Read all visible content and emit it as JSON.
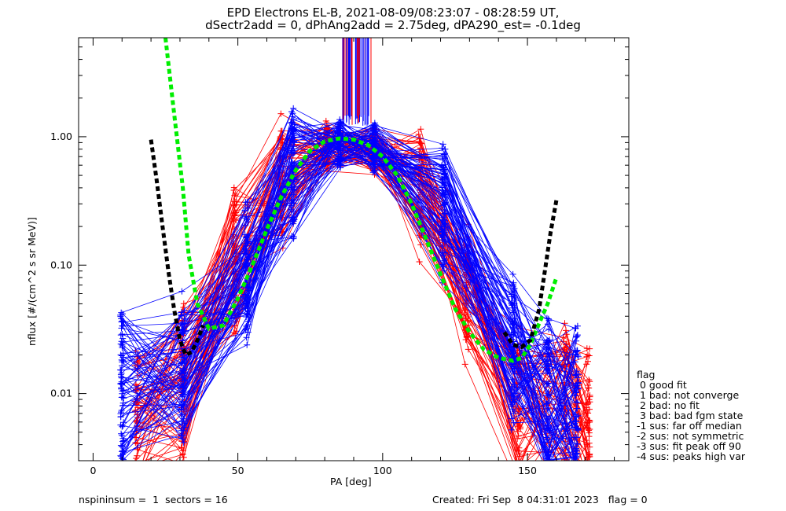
{
  "header": {
    "title_line1": "EPD Electrons EL-B, 2021-08-09/08:23:07 - 08:28:59 UT,",
    "title_line2": "dSectr2add = 0, dPhAng2add = 2.75deg, dPA290_est=  -0.1deg"
  },
  "footer": {
    "left": "nspininsum =  1  sectors = 16",
    "right": "Created: Fri Sep  8 04:31:01 2023   flag = 0"
  },
  "legend": {
    "title": "flag",
    "items": [
      " 0 good fit",
      " 1 bad: not converge",
      " 2 bad: no fit",
      " 3 bad: bad fgm state",
      "-1 sus: far off median",
      "-2 sus: not symmetric",
      "-3 sus: fit peak off 90",
      "-4 sus: peaks high var"
    ]
  },
  "colors": {
    "series_a": "#ff0000",
    "series_b": "#0000ff",
    "fit_green": "#00ee00",
    "fit_black": "#000000"
  },
  "chart_data": {
    "type": "line",
    "xlabel": "PA [deg]",
    "ylabel": "nflux [#/(cm^2 s sr MeV)]",
    "xlim": [
      -5,
      185
    ],
    "ylim": [
      0.003,
      5.9
    ],
    "yscale": "log",
    "x_ticks": [
      0,
      50,
      100,
      150
    ],
    "x_tick_labels": [
      "0",
      "50",
      "100",
      "150"
    ],
    "y_ticks": [
      0.01,
      0.1,
      1.0
    ],
    "y_tick_labels": [
      "0.01",
      "0.10",
      "1.00"
    ],
    "grid": false,
    "series": [
      {
        "color": "red",
        "style": "lines-plus",
        "count": 60,
        "pa": [
          15,
          31,
          49,
          65,
          81,
          97,
          113,
          129,
          147,
          163,
          171
        ],
        "median_profile": [
          0.006,
          0.012,
          0.1,
          0.45,
          0.85,
          0.8,
          0.4,
          0.06,
          0.008,
          0.008,
          0.006
        ]
      },
      {
        "color": "blue",
        "style": "lines-plus",
        "count": 80,
        "pa": [
          10,
          31,
          53,
          69,
          85,
          97,
          121,
          145,
          157,
          167
        ],
        "median_profile": [
          0.01,
          0.015,
          0.09,
          0.5,
          0.88,
          0.82,
          0.25,
          0.02,
          0.009,
          0.008
        ]
      },
      {
        "color": "green",
        "style": "dashed-fit",
        "x": [
          25,
          28,
          31,
          33,
          36,
          40,
          45,
          50,
          55,
          60,
          65,
          70,
          75,
          80,
          85,
          90,
          95,
          100,
          105,
          110,
          115,
          120,
          125,
          130,
          135,
          140,
          145,
          148,
          151,
          154,
          157,
          160
        ],
        "y": [
          5.9,
          1.5,
          0.4,
          0.12,
          0.05,
          0.032,
          0.034,
          0.055,
          0.1,
          0.19,
          0.34,
          0.55,
          0.78,
          0.92,
          0.97,
          0.95,
          0.86,
          0.7,
          0.5,
          0.3,
          0.16,
          0.085,
          0.046,
          0.03,
          0.022,
          0.019,
          0.018,
          0.019,
          0.024,
          0.035,
          0.05,
          0.08
        ]
      },
      {
        "color": "black",
        "style": "dashed-fit",
        "x": [
          20,
          22,
          24,
          26,
          28,
          30,
          32,
          34,
          36,
          38,
          142,
          145,
          148,
          151,
          154,
          156,
          158,
          160
        ],
        "y": [
          0.95,
          0.45,
          0.2,
          0.09,
          0.045,
          0.026,
          0.02,
          0.021,
          0.026,
          0.034,
          0.03,
          0.024,
          0.023,
          0.026,
          0.045,
          0.09,
          0.18,
          0.32
        ]
      }
    ]
  }
}
